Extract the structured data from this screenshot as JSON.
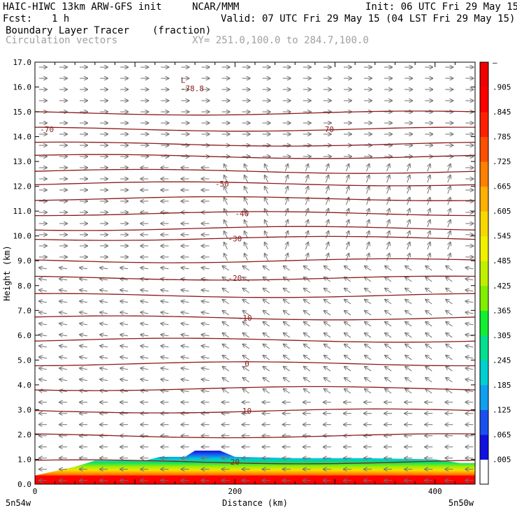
{
  "header": {
    "title_left": "HAIC-HIWC 13km ARW-GFS init",
    "org": "NCAR/MMM",
    "init": "Init: 06 UTC Fri 29 May 15",
    "fcst_label": "Fcst:",
    "fcst_value": "1 h",
    "valid": "Valid: 07 UTC Fri 29 May 15 (04 LST Fri 29 May 15)",
    "field1": "Boundary Layer Tracer",
    "field1_units": "(fraction)",
    "field2": "Circulation vectors",
    "xy": "XY= 251.0,100.0 to 284.7,100.0"
  },
  "chart_data": {
    "type": "heatmap",
    "description_fields": [
      "Boundary Layer Tracer (fraction)",
      "Circulation vectors",
      "Temperature contours"
    ],
    "xlabel": "Distance (km)",
    "ylabel": "Height (km)",
    "xlim": [
      0,
      440
    ],
    "ylim": [
      0,
      17
    ],
    "x_ticks": [
      0,
      200,
      400
    ],
    "y_ticks": [
      "0.0",
      "1.0",
      "2.0",
      "3.0",
      "4.0",
      "5.0",
      "6.0",
      "7.0",
      "8.0",
      "9.0",
      "10.0",
      "11.0",
      "12.0",
      "13.0",
      "14.0",
      "15.0",
      "16.0",
      "17.0"
    ],
    "x_end_labels": {
      "left": "5n54w",
      "right": "5n50w"
    },
    "colorbar": {
      "labels": [
        ".005",
        ".065",
        ".125",
        ".185",
        ".245",
        ".305",
        ".365",
        ".425",
        ".485",
        ".545",
        ".605",
        ".665",
        ".725",
        ".785",
        ".845",
        ".905"
      ],
      "top_label": "–",
      "colors": [
        "#ffffff",
        "#1010e0",
        "#1850f0",
        "#10a0f0",
        "#00d0d0",
        "#00e090",
        "#10f030",
        "#80f000",
        "#c0f000",
        "#f0f000",
        "#f8d800",
        "#ffb000",
        "#ff8000",
        "#ff5000",
        "#ff2000",
        "#ff0000",
        "#f00000"
      ]
    },
    "temperature_contours": [
      {
        "z": 0.9,
        "label": "20",
        "label_x": 200
      },
      {
        "z": 1.95
      },
      {
        "z": 2.95,
        "label": "10",
        "label_x": 212
      },
      {
        "z": 3.85
      },
      {
        "z": 4.85,
        "label": "0",
        "label_x": 212
      },
      {
        "z": 5.8
      },
      {
        "z": 6.7,
        "label": "-10",
        "label_x": 210
      },
      {
        "z": 7.6
      },
      {
        "z": 8.3,
        "label": "-20",
        "label_x": 200
      },
      {
        "z": 9.0
      },
      {
        "z": 9.9,
        "label": "-30",
        "label_x": 200
      },
      {
        "z": 10.3
      },
      {
        "z": 10.9,
        "label": "-40",
        "label_x": 207
      },
      {
        "z": 11.5
      },
      {
        "z": 12.1,
        "label": "-50",
        "label_x": 187
      },
      {
        "z": 12.6
      },
      {
        "z": 13.2
      },
      {
        "z": 13.7
      },
      {
        "z": 14.3,
        "label": "-70",
        "label_x": 12,
        "label2": "-70",
        "label2_x": 292
      },
      {
        "z": 14.95
      }
    ],
    "min_marker": {
      "letter": "L",
      "value": "-78.8",
      "x": 150,
      "z": 16.0
    },
    "tracer_top_km": [
      [
        0,
        0.35
      ],
      [
        40,
        0.7
      ],
      [
        60,
        0.95
      ],
      [
        110,
        0.95
      ],
      [
        125,
        1.1
      ],
      [
        150,
        1.1
      ],
      [
        160,
        1.35
      ],
      [
        185,
        1.35
      ],
      [
        200,
        1.1
      ],
      [
        260,
        1.05
      ],
      [
        330,
        1.05
      ],
      [
        400,
        1.0
      ],
      [
        425,
        0.85
      ],
      [
        440,
        0.85
      ]
    ]
  }
}
